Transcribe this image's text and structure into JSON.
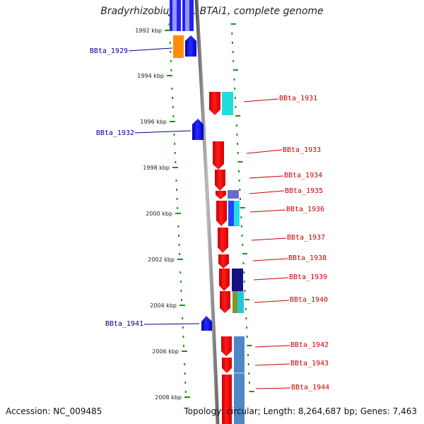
{
  "title": "Bradyrhizobium sp. BTAi1, complete genome",
  "footer": {
    "accession": "Accession: NC_009485",
    "topology": "Topology: circular; Length: 8,264,687 bp; Genes: 7,463"
  },
  "scale": [
    {
      "label": "1992 kbp",
      "pos_kbp": 1992
    },
    {
      "label": "1994 kbp",
      "pos_kbp": 1994
    },
    {
      "label": "1996 kbp",
      "pos_kbp": 1996
    },
    {
      "label": "1998 kbp",
      "pos_kbp": 1998
    },
    {
      "label": "2000 kbp",
      "pos_kbp": 2000
    },
    {
      "label": "2002 kbp",
      "pos_kbp": 2002
    },
    {
      "label": "2004 kbp",
      "pos_kbp": 2004
    },
    {
      "label": "2006 kbp",
      "pos_kbp": 2006
    },
    {
      "label": "2008 kbp",
      "pos_kbp": 2008
    }
  ],
  "labels": [
    {
      "name": "BBta_1929",
      "side": "left",
      "color": "#00008b"
    },
    {
      "name": "BBta_1931",
      "side": "right",
      "color": "#cc0000"
    },
    {
      "name": "BBta_1932",
      "side": "left",
      "color": "#00008b"
    },
    {
      "name": "BBta_1933",
      "side": "right",
      "color": "#cc0000"
    },
    {
      "name": "BBta_1934",
      "side": "right",
      "color": "#cc0000"
    },
    {
      "name": "BBta_1935",
      "side": "right",
      "color": "#cc0000"
    },
    {
      "name": "BBta_1936",
      "side": "right",
      "color": "#cc0000"
    },
    {
      "name": "BBta_1937",
      "side": "right",
      "color": "#cc0000"
    },
    {
      "name": "BBta_1938",
      "side": "right",
      "color": "#cc0000"
    },
    {
      "name": "BBta_1939",
      "side": "right",
      "color": "#cc0000"
    },
    {
      "name": "BBta_1940",
      "side": "right",
      "color": "#cc0000"
    },
    {
      "name": "BBta_1941",
      "side": "left",
      "color": "#00008b"
    },
    {
      "name": "BBta_1942",
      "side": "right",
      "color": "#cc0000"
    },
    {
      "name": "BBta_1943",
      "side": "right",
      "color": "#cc0000"
    },
    {
      "name": "BBta_1944",
      "side": "right",
      "color": "#cc0000"
    }
  ],
  "colors": {
    "forward_strand": "#ff0000",
    "reverse_strand": "#0000ff",
    "backbone": "#888888",
    "tick": "#228b22"
  }
}
